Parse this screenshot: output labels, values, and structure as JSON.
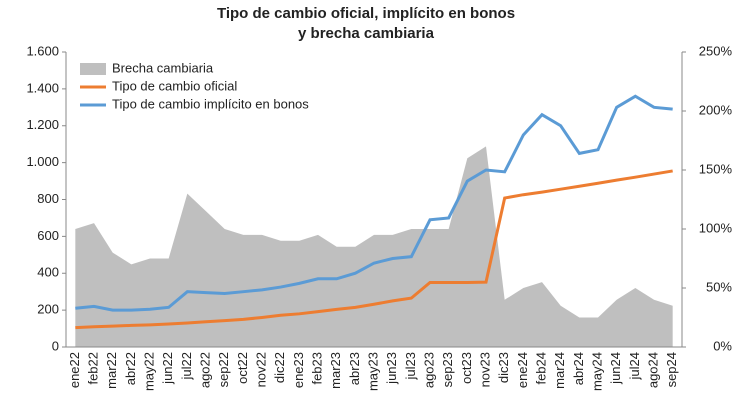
{
  "chart_data": {
    "type": "combo",
    "title": [
      "Tipo de cambio oficial, implícito en bonos",
      "y brecha cambiaria"
    ],
    "categories": [
      "ene22",
      "feb22",
      "mar22",
      "abr22",
      "may22",
      "jun22",
      "jul22",
      "ago22",
      "sep22",
      "oct22",
      "nov22",
      "dic22",
      "ene23",
      "feb23",
      "mar23",
      "abr23",
      "may23",
      "jun23",
      "jul23",
      "ago23",
      "sep23",
      "oct23",
      "nov23",
      "dic23",
      "ene24",
      "feb24",
      "mar24",
      "abr24",
      "may24",
      "jun24",
      "jul24",
      "ago24",
      "sep24"
    ],
    "series": [
      {
        "name": "Brecha cambiaria",
        "kind": "area",
        "axis": "y2",
        "color": "#bfbfbf",
        "values": [
          100,
          105,
          80,
          70,
          75,
          75,
          130,
          115,
          100,
          95,
          95,
          90,
          90,
          95,
          85,
          85,
          95,
          95,
          100,
          100,
          100,
          160,
          170,
          40,
          50,
          55,
          35,
          25,
          25,
          40,
          50,
          40,
          35
        ]
      },
      {
        "name": "Tipo de cambio oficial",
        "kind": "line",
        "color": "#ed7d31",
        "values": [
          105,
          110,
          113,
          117,
          120,
          125,
          130,
          137,
          143,
          150,
          160,
          172,
          180,
          192,
          204,
          215,
          232,
          250,
          265,
          350,
          350,
          350,
          352,
          808,
          826,
          840,
          856,
          872,
          888,
          905,
          921,
          938,
          955
        ]
      },
      {
        "name": "Tipo de cambio implícito en bonos",
        "kind": "line",
        "color": "#5b9bd5",
        "values": [
          210,
          220,
          200,
          200,
          205,
          215,
          300,
          295,
          290,
          300,
          310,
          325,
          345,
          370,
          370,
          400,
          455,
          480,
          490,
          690,
          700,
          900,
          960,
          950,
          1150,
          1260,
          1200,
          1050,
          1070,
          1300,
          1360,
          1300,
          1290
        ]
      }
    ],
    "ylim": [
      0,
      1600
    ],
    "yticks": [
      0,
      200,
      400,
      600,
      800,
      {
        "value": 1000,
        "label": "1.000"
      },
      {
        "value": 1200,
        "label": "1.200"
      },
      {
        "value": 1400,
        "label": "1.400"
      },
      {
        "value": 1600,
        "label": "1.600"
      }
    ],
    "y2lim": [
      0,
      250
    ],
    "y2ticks": [
      {
        "value": 0,
        "label": "0%"
      },
      {
        "value": 50,
        "label": "50%"
      },
      {
        "value": 100,
        "label": "100%"
      },
      {
        "value": 150,
        "label": "150%"
      },
      {
        "value": 200,
        "label": "200%"
      },
      {
        "value": 250,
        "label": "250%"
      }
    ],
    "legend": "top-left",
    "grid": false
  }
}
